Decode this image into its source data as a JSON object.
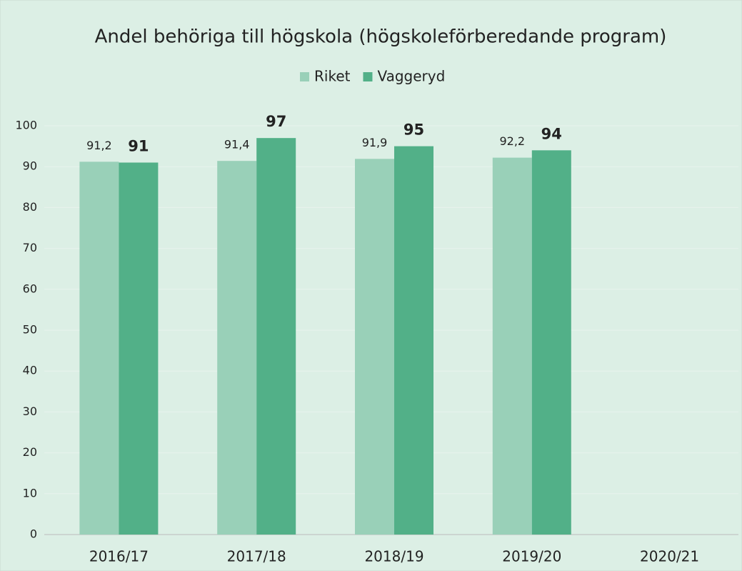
{
  "chart_data": {
    "type": "bar",
    "title": "Andel behöriga till högskola (högskoleförberedande program)",
    "categories": [
      "2016/17",
      "2017/18",
      "2018/19",
      "2019/20",
      "2020/21"
    ],
    "series": [
      {
        "name": "Riket",
        "color": "#99d0b8",
        "values": [
          91.2,
          91.4,
          91.9,
          92.2,
          null
        ],
        "value_labels": [
          "91,2",
          "91,4",
          "91,9",
          "92,2",
          null
        ]
      },
      {
        "name": "Vaggeryd",
        "color": "#52b088",
        "values": [
          91,
          97,
          95,
          94,
          null
        ]
      }
    ],
    "ylim": [
      0,
      100
    ],
    "yticks": [
      0,
      10,
      20,
      30,
      40,
      50,
      60,
      70,
      80,
      90,
      100
    ],
    "grid": true,
    "legend": "top"
  }
}
